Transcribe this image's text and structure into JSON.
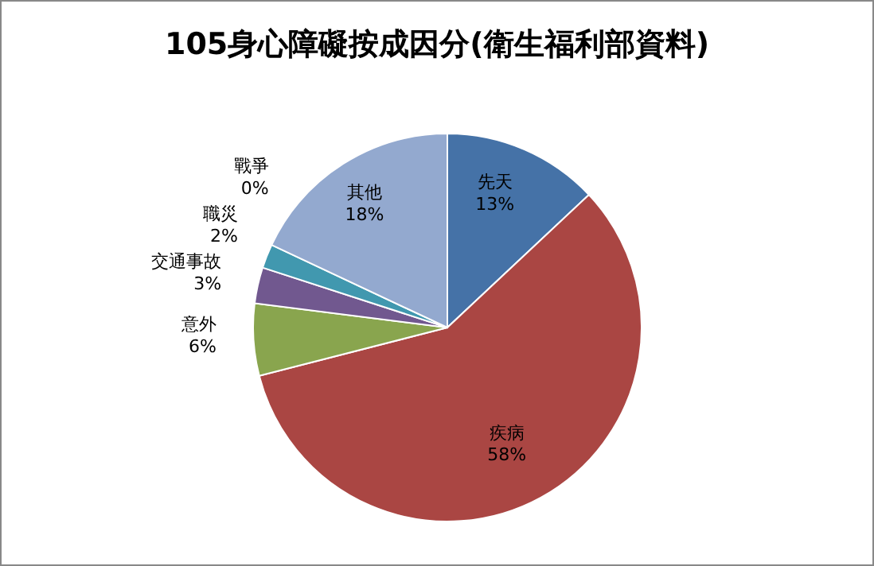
{
  "chart_data": {
    "type": "pie",
    "title": "105身心障礙按成因分(衛生福利部資料)",
    "categories": [
      "先天",
      "疾病",
      "意外",
      "交通事故",
      "職災",
      "戰爭",
      "其他"
    ],
    "values": [
      13,
      58,
      6,
      3,
      2,
      0,
      18
    ],
    "value_labels": [
      "13%",
      "58%",
      "6%",
      "3%",
      "2%",
      "0%",
      "18%"
    ],
    "colors": [
      "#4572a7",
      "#aa4643",
      "#89a54e",
      "#71588f",
      "#4198af",
      "#db843d",
      "#93a9cf"
    ]
  }
}
